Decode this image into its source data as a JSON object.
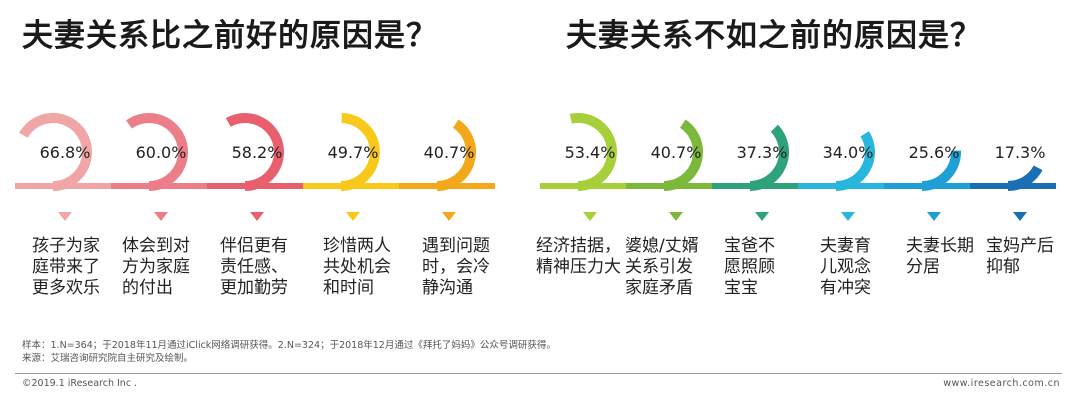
{
  "titles": {
    "left": "夫妻关系比之前好的原因是？",
    "right": "夫妻关系不如之前的原因是？"
  },
  "chart_data": [
    {
      "type": "bar",
      "title": "夫妻关系比之前好的原因是？",
      "categories": [
        "孩子为家庭带来了更多欢乐",
        "体会到对方为家庭的付出",
        "伴侣更有责任感、更加勤劳",
        "珍惜两人共处机会和时间",
        "遇到问题时，会冷静沟通"
      ],
      "labels": [
        "孩子为家\n庭带来了\n更多欢乐",
        "体会到对\n方为家庭\n的付出",
        "伴侣更有\n责任感、\n更加勤劳",
        "珍惜两人\n共处机会\n和时间",
        "遇到问题\n时，会冷\n静沟通"
      ],
      "values": [
        66.8,
        60.0,
        58.2,
        49.7,
        40.7
      ],
      "value_labels": [
        "66.8%",
        "60.0%",
        "58.2%",
        "49.7%",
        "40.7%"
      ],
      "colors": [
        "#f0a6a6",
        "#eb7e88",
        "#e8606e",
        "#f8c81a",
        "#f3a81b"
      ]
    },
    {
      "type": "bar",
      "title": "夫妻关系不如之前的原因是？",
      "categories": [
        "经济拮据，精神压力大",
        "婆媳/丈婿关系引发家庭矛盾",
        "宝爸不愿照顾宝宝",
        "夫妻育儿观念有冲突",
        "夫妻长期分居",
        "宝妈产后抑郁"
      ],
      "labels": [
        "经济拮据，\n精神压力大",
        "婆媳/丈婿\n关系引发\n家庭矛盾",
        "宝爸不\n愿照顾\n宝宝",
        "夫妻育\n儿观念\n有冲突",
        "夫妻长期\n分居",
        "宝妈产后\n抑郁"
      ],
      "values": [
        53.4,
        40.7,
        37.3,
        34.0,
        25.6,
        17.3
      ],
      "value_labels": [
        "53.4%",
        "40.7%",
        "37.3%",
        "34.0%",
        "25.6%",
        "17.3%"
      ],
      "colors": [
        "#a7cf3a",
        "#7cb83a",
        "#2ea27b",
        "#28b7dc",
        "#1e9fd6",
        "#1a6fb4"
      ]
    }
  ],
  "notes": {
    "line1": "样本：1.N=364；于2018年11月通过iClick网络调研获得。2.N=324；于2018年12月通过《拜托了妈妈》公众号调研获得。",
    "line2": "来源：艾瑞咨询研究院自主研究及绘制。"
  },
  "footer": {
    "copyright": "©2019.1 iResearch Inc .",
    "website": "www.iresearch.com.cn"
  }
}
